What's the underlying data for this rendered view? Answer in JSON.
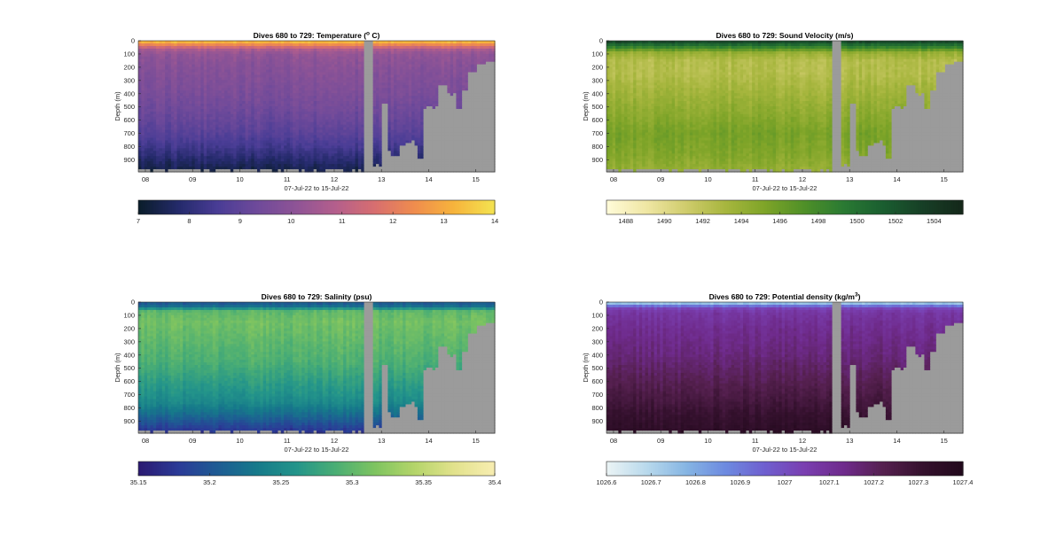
{
  "figure": {
    "panels": [
      {
        "id": "temperature",
        "title": "Dives 680 to 729: Temperature (",
        "title_sup": "o",
        "title_tail": " C)",
        "ylabel": "Depth (m)",
        "xlabel": "07-Jul-22 to 15-Jul-22",
        "colorbar": {
          "min": 7,
          "max": 14,
          "ticks": [
            "7",
            "8",
            "9",
            "10",
            "11",
            "12",
            "13",
            "14"
          ],
          "tick_values": [
            7,
            8,
            9,
            10,
            11,
            12,
            13,
            14
          ],
          "colormap": [
            "#0b1d2b",
            "#242a6b",
            "#4a3d96",
            "#6f4a9a",
            "#8f5496",
            "#b55f8c",
            "#d86f6f",
            "#f08d4d",
            "#f6b43c",
            "#f4e250"
          ]
        }
      },
      {
        "id": "sound_velocity",
        "title": "Dives 680 to 729: Sound Velocity (m/s)",
        "title_sup": "",
        "title_tail": "",
        "ylabel": "Depth (m)",
        "xlabel": "07-Jul-22 to 15-Jul-22",
        "colorbar": {
          "min": 1487,
          "max": 1505.5,
          "ticks": [
            "1488",
            "1490",
            "1492",
            "1494",
            "1496",
            "1498",
            "1500",
            "1502",
            "1504"
          ],
          "tick_values": [
            1488,
            1490,
            1492,
            1494,
            1496,
            1498,
            1500,
            1502,
            1504
          ],
          "colormap": [
            "#fffbd8",
            "#efe6a3",
            "#cfcc6c",
            "#a7b63e",
            "#7ea428",
            "#4f9028",
            "#2a7a33",
            "#1a5e30",
            "#173f26",
            "#14281a"
          ]
        }
      },
      {
        "id": "salinity",
        "title": "Dives 680 to 729: Salinity (psu)",
        "title_sup": "",
        "title_tail": "",
        "ylabel": "Depth (m)",
        "xlabel": "07-Jul-22 to 15-Jul-22",
        "colorbar": {
          "min": 35.15,
          "max": 35.4,
          "ticks": [
            "35.15",
            "35.2",
            "35.25",
            "35.3",
            "35.35",
            "35.4"
          ],
          "tick_values": [
            35.15,
            35.2,
            35.25,
            35.3,
            35.35,
            35.4
          ],
          "colormap": [
            "#2b1a72",
            "#2b3b97",
            "#1e5c93",
            "#167a8a",
            "#24958a",
            "#4bae74",
            "#7fc460",
            "#b5d56a",
            "#e2e28d",
            "#f7edb0"
          ]
        }
      },
      {
        "id": "density",
        "title": "Dives 680 to 729: Potential density (kg/m",
        "title_sup": "3",
        "title_tail": ")",
        "ylabel": "Depth (m)",
        "xlabel": "07-Jul-22 to 15-Jul-22",
        "colorbar": {
          "min": 1026.6,
          "max": 1027.4,
          "ticks": [
            "1026.6",
            "1026.7",
            "1026.8",
            "1026.9",
            "1027",
            "1027.1",
            "1027.2",
            "1027.3",
            "1027.4"
          ],
          "tick_values": [
            1026.6,
            1026.7,
            1026.8,
            1026.9,
            1027,
            1027.1,
            1027.2,
            1027.3,
            1027.4
          ],
          "colormap": [
            "#eaf3f5",
            "#b8d9ec",
            "#86b5e3",
            "#6d8ae0",
            "#6f5fcf",
            "#7a3fb0",
            "#6f2b8c",
            "#55204f",
            "#35112e",
            "#22091c"
          ]
        }
      }
    ]
  },
  "chart_data": [
    {
      "type": "heatmap",
      "title": "Dives 680 to 729: Temperature (o C)",
      "xlabel": "07-Jul-22 to 15-Jul-22",
      "ylabel": "Depth (m)",
      "x_ticks": [
        "08",
        "09",
        "10",
        "11",
        "12",
        "13",
        "14",
        "15"
      ],
      "x_tick_values": [
        8,
        9,
        10,
        11,
        12,
        13,
        14,
        15
      ],
      "x_range_days": [
        7.85,
        15.4
      ],
      "y_ticks": [
        "0",
        "100",
        "200",
        "300",
        "400",
        "500",
        "600",
        "700",
        "800",
        "900"
      ],
      "y_tick_values": [
        0,
        100,
        200,
        300,
        400,
        500,
        600,
        700,
        800,
        900
      ],
      "y_range": [
        0,
        990
      ],
      "y_reversed": true,
      "value_range": [
        7,
        14
      ],
      "profile": [
        [
          0,
          13.6
        ],
        [
          20,
          12.8
        ],
        [
          45,
          11.6
        ],
        [
          70,
          10.6
        ],
        [
          100,
          10.15
        ],
        [
          200,
          9.9
        ],
        [
          300,
          9.75
        ],
        [
          400,
          9.6
        ],
        [
          500,
          9.4
        ],
        [
          600,
          9.15
        ],
        [
          700,
          8.85
        ],
        [
          800,
          8.4
        ],
        [
          900,
          7.8
        ],
        [
          990,
          7.3
        ]
      ]
    },
    {
      "type": "heatmap",
      "title": "Dives 680 to 729: Sound Velocity (m/s)",
      "xlabel": "07-Jul-22 to 15-Jul-22",
      "ylabel": "Depth (m)",
      "x_ticks": [
        "08",
        "09",
        "10",
        "11",
        "12",
        "13",
        "14",
        "15"
      ],
      "x_tick_values": [
        8,
        9,
        10,
        11,
        12,
        13,
        14,
        15
      ],
      "x_range_days": [
        7.85,
        15.4
      ],
      "y_ticks": [
        "0",
        "100",
        "200",
        "300",
        "400",
        "500",
        "600",
        "700",
        "800",
        "900"
      ],
      "y_tick_values": [
        0,
        100,
        200,
        300,
        400,
        500,
        600,
        700,
        800,
        900
      ],
      "y_range": [
        0,
        990
      ],
      "y_reversed": true,
      "value_range": [
        1487,
        1505.5
      ],
      "profile": [
        [
          0,
          1503.5
        ],
        [
          20,
          1501.5
        ],
        [
          50,
          1498.5
        ],
        [
          90,
          1494
        ],
        [
          150,
          1492.5
        ],
        [
          250,
          1492.5
        ],
        [
          400,
          1493.5
        ],
        [
          550,
          1494.5
        ],
        [
          700,
          1495.5
        ],
        [
          850,
          1495
        ],
        [
          990,
          1494
        ]
      ]
    },
    {
      "type": "heatmap",
      "title": "Dives 680 to 729: Salinity (psu)",
      "xlabel": "07-Jul-22 to 15-Jul-22",
      "ylabel": "Depth (m)",
      "x_ticks": [
        "08",
        "09",
        "10",
        "11",
        "12",
        "13",
        "14",
        "15"
      ],
      "x_tick_values": [
        8,
        9,
        10,
        11,
        12,
        13,
        14,
        15
      ],
      "x_range_days": [
        7.85,
        15.4
      ],
      "y_ticks": [
        "0",
        "100",
        "200",
        "300",
        "400",
        "500",
        "600",
        "700",
        "800",
        "900"
      ],
      "y_tick_values": [
        0,
        100,
        200,
        300,
        400,
        500,
        600,
        700,
        800,
        900
      ],
      "y_range": [
        0,
        990
      ],
      "y_reversed": true,
      "value_range": [
        35.15,
        35.4
      ],
      "profile": [
        [
          0,
          35.2
        ],
        [
          30,
          35.22
        ],
        [
          70,
          35.3
        ],
        [
          150,
          35.31
        ],
        [
          300,
          35.3
        ],
        [
          450,
          35.29
        ],
        [
          600,
          35.27
        ],
        [
          750,
          35.25
        ],
        [
          850,
          35.22
        ],
        [
          930,
          35.19
        ],
        [
          990,
          35.17
        ]
      ]
    },
    {
      "type": "heatmap",
      "title": "Dives 680 to 729: Potential density (kg/m3)",
      "xlabel": "07-Jul-22 to 15-Jul-22",
      "ylabel": "Depth (m)",
      "x_ticks": [
        "08",
        "09",
        "10",
        "11",
        "12",
        "13",
        "14",
        "15"
      ],
      "x_tick_values": [
        8,
        9,
        10,
        11,
        12,
        13,
        14,
        15
      ],
      "x_range_days": [
        7.85,
        15.4
      ],
      "y_ticks": [
        "0",
        "100",
        "200",
        "300",
        "400",
        "500",
        "600",
        "700",
        "800",
        "900"
      ],
      "y_tick_values": [
        0,
        100,
        200,
        300,
        400,
        500,
        600,
        700,
        800,
        900
      ],
      "y_range": [
        0,
        990
      ],
      "y_reversed": true,
      "value_range": [
        1026.6,
        1027.4
      ],
      "profile": [
        [
          0,
          1026.65
        ],
        [
          20,
          1026.85
        ],
        [
          45,
          1027.02
        ],
        [
          80,
          1027.08
        ],
        [
          200,
          1027.12
        ],
        [
          400,
          1027.16
        ],
        [
          600,
          1027.22
        ],
        [
          750,
          1027.27
        ],
        [
          850,
          1027.31
        ],
        [
          990,
          1027.35
        ]
      ]
    }
  ]
}
